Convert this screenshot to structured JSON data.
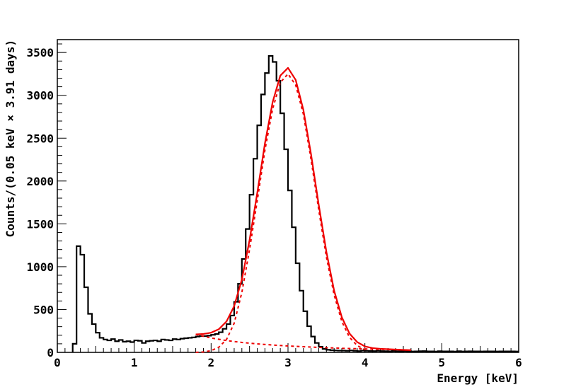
{
  "chart_data": {
    "type": "line",
    "title": "",
    "xlabel": "Energy [keV]",
    "ylabel": "Counts/(0.05 keV × 3.91 days)",
    "xlim": [
      0,
      6
    ],
    "ylim": [
      0,
      3650
    ],
    "grid": false,
    "x_ticks": [
      0,
      1,
      2,
      3,
      4,
      5,
      6
    ],
    "x_tick_labels": [
      "0",
      "1",
      "2",
      "3",
      "4",
      "5",
      "6"
    ],
    "y_ticks": [
      0,
      500,
      1000,
      1500,
      2000,
      2500,
      3000,
      3500
    ],
    "y_tick_labels": [
      "0",
      "500",
      "1000",
      "1500",
      "2000",
      "2500",
      "3000",
      "3500"
    ],
    "bin_width": 0.05,
    "histogram": {
      "name": "data",
      "color": "#000000",
      "bin_low_edges": [
        0.2,
        0.25,
        0.3,
        0.35,
        0.4,
        0.45,
        0.5,
        0.55,
        0.6,
        0.65,
        0.7,
        0.75,
        0.8,
        0.85,
        0.9,
        0.95,
        1.0,
        1.05,
        1.1,
        1.15,
        1.2,
        1.25,
        1.3,
        1.35,
        1.4,
        1.45,
        1.5,
        1.55,
        1.6,
        1.65,
        1.7,
        1.75,
        1.8,
        1.85,
        1.9,
        1.95,
        2.0,
        2.05,
        2.1,
        2.15,
        2.2,
        2.25,
        2.3,
        2.35,
        2.4,
        2.45,
        2.5,
        2.55,
        2.6,
        2.65,
        2.7,
        2.75,
        2.8,
        2.85,
        2.9,
        2.95,
        3.0,
        3.05,
        3.1,
        3.15,
        3.2,
        3.25,
        3.3,
        3.35,
        3.4,
        3.45,
        3.5,
        3.55,
        3.6,
        3.65,
        3.7,
        3.75,
        3.8,
        3.85,
        3.9,
        3.95,
        4.0,
        4.05,
        4.1,
        4.15,
        4.2,
        4.25,
        4.3,
        4.35,
        4.4,
        4.45,
        4.5,
        4.55,
        4.6,
        4.65,
        4.7,
        4.75,
        4.8,
        4.85,
        4.9,
        4.95,
        5.0,
        5.05,
        5.1,
        5.15,
        5.2,
        5.25,
        5.3,
        5.35,
        5.4,
        5.45,
        5.5,
        5.55,
        5.6,
        5.65,
        5.7,
        5.75,
        5.8,
        5.85,
        5.9,
        5.95
      ],
      "counts": [
        100,
        1240,
        1140,
        760,
        450,
        330,
        230,
        170,
        150,
        140,
        155,
        130,
        145,
        125,
        130,
        120,
        140,
        135,
        110,
        130,
        135,
        140,
        130,
        150,
        145,
        140,
        155,
        150,
        160,
        165,
        170,
        175,
        185,
        190,
        190,
        195,
        205,
        215,
        235,
        275,
        330,
        430,
        590,
        800,
        1090,
        1440,
        1840,
        2260,
        2650,
        3010,
        3260,
        3460,
        3390,
        3170,
        2790,
        2370,
        1890,
        1460,
        1040,
        720,
        480,
        305,
        185,
        110,
        65,
        40,
        30,
        25,
        22,
        20,
        20,
        18,
        22,
        18,
        15,
        20,
        18,
        16,
        15,
        18,
        15,
        14,
        12,
        16,
        14,
        12,
        15,
        13,
        11,
        12,
        14,
        15,
        12,
        12,
        10,
        14,
        12,
        12,
        12,
        10,
        14,
        11,
        12,
        13,
        12,
        12,
        11,
        12,
        12,
        12,
        11,
        12,
        12,
        12,
        12,
        11,
        10,
        12,
        12
      ]
    },
    "fit_components": [
      {
        "name": "fit",
        "color": "#ee0000",
        "style": "solid",
        "x": [
          1.8,
          1.9,
          2.0,
          2.1,
          2.2,
          2.3,
          2.4,
          2.5,
          2.6,
          2.7,
          2.8,
          2.9,
          3.0,
          3.1,
          3.2,
          3.3,
          3.4,
          3.5,
          3.6,
          3.7,
          3.8,
          3.9,
          4.0,
          4.1,
          4.2,
          4.3,
          4.4,
          4.5,
          4.6
        ],
        "y": [
          210,
          215,
          230,
          270,
          360,
          540,
          850,
          1310,
          1860,
          2440,
          2920,
          3230,
          3320,
          3180,
          2830,
          2310,
          1720,
          1170,
          720,
          410,
          220,
          120,
          70,
          50,
          42,
          37,
          33,
          29,
          26
        ]
      },
      {
        "name": "background",
        "color": "#ee0000",
        "style": "dashed",
        "x": [
          1.8,
          2.0,
          2.2,
          2.4,
          2.6,
          2.8,
          3.0,
          3.2,
          3.4,
          3.6,
          3.8,
          4.0,
          4.2,
          4.4,
          4.6
        ],
        "y": [
          210,
          168,
          138,
          116,
          99,
          86,
          75,
          66,
          58,
          51,
          45,
          40,
          35,
          31,
          27
        ]
      },
      {
        "name": "peak",
        "color": "#ee0000",
        "style": "dashed",
        "x": [
          1.8,
          1.9,
          2.0,
          2.1,
          2.2,
          2.3,
          2.4,
          2.5,
          2.6,
          2.7,
          2.8,
          2.9,
          3.0,
          3.1,
          3.2,
          3.3,
          3.4,
          3.5,
          3.6,
          3.7,
          3.8,
          3.9,
          4.0
        ],
        "y": [
          0,
          5,
          20,
          60,
          150,
          340,
          700,
          1200,
          1770,
          2360,
          2840,
          3150,
          3250,
          3120,
          2780,
          2250,
          1660,
          1110,
          670,
          360,
          175,
          80,
          30
        ]
      }
    ]
  }
}
